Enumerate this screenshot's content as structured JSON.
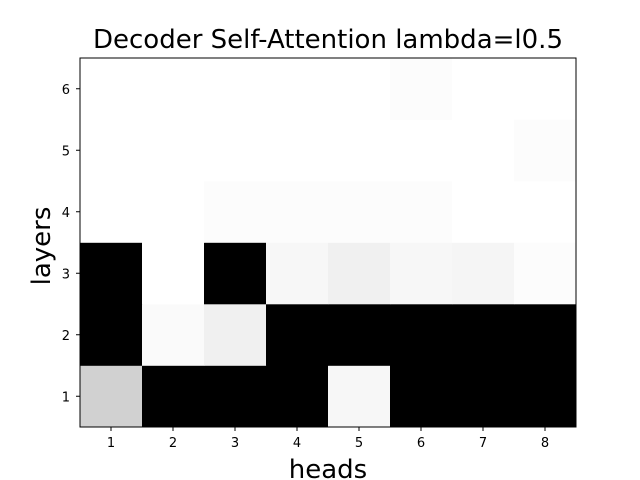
{
  "chart_data": {
    "type": "heatmap",
    "title": "Decoder Self-Attention lambda=l0.5",
    "xlabel": "heads",
    "ylabel": "layers",
    "x_ticks": [
      "1",
      "2",
      "3",
      "4",
      "5",
      "6",
      "7",
      "8"
    ],
    "y_ticks": [
      "1",
      "2",
      "3",
      "4",
      "5",
      "6"
    ],
    "colormap": "gray_r",
    "value_range": [
      0,
      1
    ],
    "grid": false,
    "values": [
      [
        0.18,
        1.0,
        1.0,
        1.0,
        0.03,
        1.0,
        1.0,
        1.0
      ],
      [
        1.0,
        0.02,
        0.06,
        1.0,
        1.0,
        1.0,
        1.0,
        1.0
      ],
      [
        1.0,
        0.0,
        1.0,
        0.03,
        0.06,
        0.03,
        0.04,
        0.01
      ],
      [
        0.0,
        0.0,
        0.01,
        0.01,
        0.01,
        0.01,
        0.0,
        0.0
      ],
      [
        0.0,
        0.0,
        0.0,
        0.0,
        0.0,
        0.0,
        0.0,
        0.01
      ],
      [
        0.0,
        0.0,
        0.0,
        0.0,
        0.0,
        0.01,
        0.0,
        0.0
      ]
    ]
  }
}
